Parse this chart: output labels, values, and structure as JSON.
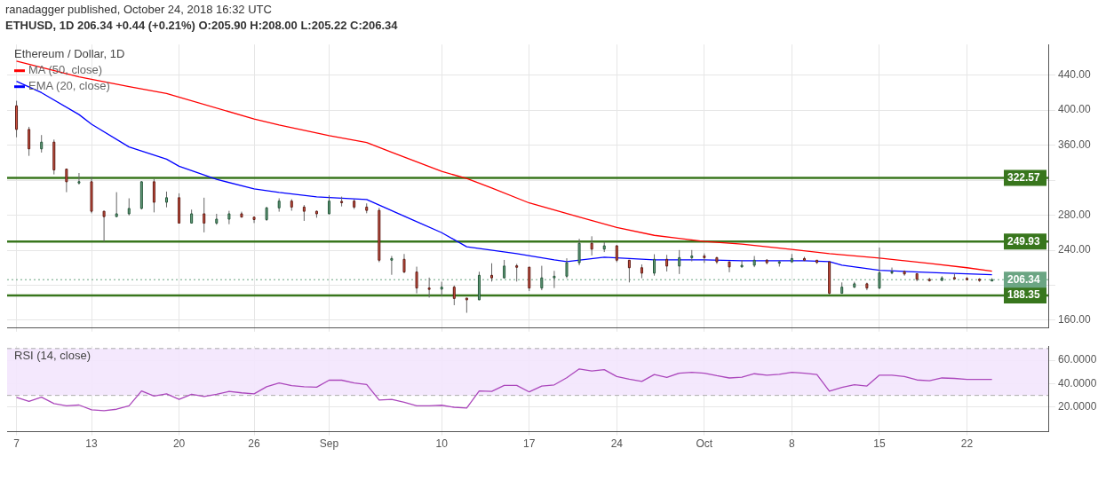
{
  "chart_data": [
    {
      "type": "candlestick",
      "title": "Ethereum / Dollar, 1D",
      "annotations": [
        "ranadagger published, October 24, 2018 16:32 UTC",
        "ETHUSD, 1D 206.34 +0.44 (+0.21%) O:205.90 H:208.00 L:205.22 C:206.34"
      ],
      "x": [
        "2018-08-07",
        "2018-08-08",
        "2018-08-09",
        "2018-08-10",
        "2018-08-11",
        "2018-08-12",
        "2018-08-13",
        "2018-08-14",
        "2018-08-15",
        "2018-08-16",
        "2018-08-17",
        "2018-08-18",
        "2018-08-19",
        "2018-08-20",
        "2018-08-21",
        "2018-08-22",
        "2018-08-23",
        "2018-08-24",
        "2018-08-25",
        "2018-08-26",
        "2018-08-27",
        "2018-08-28",
        "2018-08-29",
        "2018-08-30",
        "2018-08-31",
        "2018-09-01",
        "2018-09-02",
        "2018-09-03",
        "2018-09-04",
        "2018-09-05",
        "2018-09-06",
        "2018-09-07",
        "2018-09-08",
        "2018-09-09",
        "2018-09-10",
        "2018-09-11",
        "2018-09-12",
        "2018-09-13",
        "2018-09-14",
        "2018-09-15",
        "2018-09-16",
        "2018-09-17",
        "2018-09-18",
        "2018-09-19",
        "2018-09-20",
        "2018-09-21",
        "2018-09-22",
        "2018-09-23",
        "2018-09-24",
        "2018-09-25",
        "2018-09-26",
        "2018-09-27",
        "2018-09-28",
        "2018-09-29",
        "2018-09-30",
        "2018-10-01",
        "2018-10-02",
        "2018-10-03",
        "2018-10-04",
        "2018-10-05",
        "2018-10-06",
        "2018-10-07",
        "2018-10-08",
        "2018-10-09",
        "2018-10-10",
        "2018-10-11",
        "2018-10-12",
        "2018-10-13",
        "2018-10-14",
        "2018-10-15",
        "2018-10-16",
        "2018-10-17",
        "2018-10-18",
        "2018-10-19",
        "2018-10-20",
        "2018-10-21",
        "2018-10-22",
        "2018-10-23",
        "2018-10-24"
      ],
      "ohlc": [
        [
          405,
          410.8,
          369,
          378
        ],
        [
          378,
          381,
          347.8,
          355.8
        ],
        [
          355.8,
          371.6,
          351.6,
          363.5
        ],
        [
          363.5,
          366.4,
          326.6,
          331.7
        ],
        [
          332.7,
          332.7,
          306.3,
          318.2
        ],
        [
          317.8,
          328.2,
          315,
          318.3
        ],
        [
          318.2,
          324,
          282.2,
          284.5
        ],
        [
          284.5,
          285,
          249.8,
          278.4
        ],
        [
          278.4,
          306.3,
          278,
          281.6
        ],
        [
          281.6,
          299.3,
          279.7,
          287.7
        ],
        [
          287.7,
          318.8,
          286.6,
          318.2
        ],
        [
          318.2,
          321.4,
          283.2,
          294.8
        ],
        [
          294.8,
          307,
          289,
          300
        ],
        [
          300,
          305,
          270.4,
          271
        ],
        [
          271,
          286.4,
          270.5,
          281.6
        ],
        [
          281.6,
          300,
          260.4,
          271
        ],
        [
          271,
          281.6,
          269.1,
          275.5
        ],
        [
          275.5,
          285,
          269.7,
          281.6
        ],
        [
          281.6,
          284,
          277.5,
          277.8
        ],
        [
          277.8,
          277.8,
          271,
          275
        ],
        [
          275,
          289.5,
          273.5,
          288.4
        ],
        [
          288.4,
          299.3,
          284,
          296.1
        ],
        [
          296.1,
          298.3,
          285.1,
          289.3
        ],
        [
          289.3,
          291.6,
          273.5,
          284.5
        ],
        [
          284.5,
          285.3,
          277.1,
          281.6
        ],
        [
          281.6,
          302.8,
          281,
          296.1
        ],
        [
          295.8,
          301.2,
          290,
          295.2
        ],
        [
          296.1,
          298,
          287,
          289.3
        ],
        [
          289.3,
          293.5,
          282.2,
          285.5
        ],
        [
          285.5,
          288.4,
          226.3,
          228.6
        ],
        [
          228.6,
          233.4,
          211.9,
          230.5
        ],
        [
          229.6,
          235.7,
          213.8,
          215.1
        ],
        [
          215.1,
          221.2,
          190.7,
          196.8
        ],
        [
          196.8,
          208.7,
          185.9,
          195.5
        ],
        [
          195.5,
          203.9,
          187.8,
          197.8
        ],
        [
          197.8,
          199.7,
          177.2,
          184.9
        ],
        [
          185.3,
          185.3,
          168.5,
          183.3
        ],
        [
          183.3,
          215.4,
          183,
          211.3
        ],
        [
          211.3,
          225.1,
          204.2,
          208.4
        ],
        [
          208.4,
          228.9,
          207.8,
          221.9
        ],
        [
          222.2,
          224.4,
          204.2,
          220.5
        ],
        [
          220.6,
          221,
          193.3,
          196.8
        ],
        [
          196.8,
          222.2,
          194.3,
          208.4
        ],
        [
          208.4,
          216.4,
          196.8,
          210.3
        ],
        [
          210.3,
          230.8,
          208,
          225.7
        ],
        [
          225.7,
          253,
          222.8,
          247.9
        ],
        [
          247.9,
          255.9,
          234,
          241.2
        ],
        [
          241.2,
          249.5,
          237.9,
          245
        ],
        [
          245,
          246,
          226.3,
          228.6
        ],
        [
          228.6,
          228.6,
          203.2,
          220
        ],
        [
          220,
          223.8,
          208,
          213.8
        ],
        [
          213.8,
          235.4,
          210.9,
          229.6
        ],
        [
          229.6,
          234.7,
          215.7,
          221.9
        ],
        [
          221.9,
          240.2,
          212.8,
          231.5
        ],
        [
          231.5,
          240.2,
          227.3,
          233.4
        ],
        [
          233.4,
          236.3,
          225.4,
          231.5
        ],
        [
          231.5,
          232.4,
          224.4,
          226.7
        ],
        [
          226.7,
          226.7,
          214.8,
          220.9
        ],
        [
          220.9,
          228.6,
          220.3,
          222.8
        ],
        [
          222.8,
          233.4,
          220.6,
          228.6
        ],
        [
          228.6,
          229.9,
          223.8,
          225.7
        ],
        [
          225.7,
          228,
          221.3,
          226.7
        ],
        [
          226.7,
          235.7,
          225.4,
          230.5
        ],
        [
          230.5,
          232.4,
          227.6,
          228.6
        ],
        [
          228.6,
          228.6,
          224.4,
          226
        ],
        [
          226.7,
          226.7,
          189.7,
          190.7
        ],
        [
          190.7,
          203.2,
          190.7,
          197.8
        ],
        [
          197.8,
          203.9,
          196.8,
          201.6
        ],
        [
          201.6,
          202.9,
          194.3,
          196.8
        ],
        [
          196.8,
          243.1,
          195.5,
          214.2
        ],
        [
          214,
          220.2,
          212.5,
          215.5
        ],
        [
          215.5,
          217,
          210.9,
          212.8
        ],
        [
          213.2,
          213.2,
          204.5,
          206.7
        ],
        [
          206.7,
          208.4,
          204.2,
          205.5
        ],
        [
          205.5,
          210.3,
          204.8,
          208.4
        ],
        [
          208.7,
          213.2,
          207,
          207.2
        ],
        [
          207.8,
          209.3,
          205.5,
          206.7
        ],
        [
          206.9,
          208,
          203.9,
          206.3
        ],
        [
          205.9,
          208,
          205.22,
          206.34
        ]
      ],
      "series": [
        {
          "type": "line",
          "name": "MA (50, close)",
          "color": "#ff0000",
          "x": [
            "2018-08-07",
            "2018-08-12",
            "2018-08-16",
            "2018-08-19",
            "2018-08-26",
            "2018-08-28",
            "2018-09-01",
            "2018-09-04",
            "2018-09-06",
            "2018-09-10",
            "2018-09-12",
            "2018-09-14",
            "2018-09-17",
            "2018-09-19",
            "2018-09-21",
            "2018-09-24",
            "2018-09-27",
            "2018-10-01",
            "2018-10-04",
            "2018-10-08",
            "2018-10-11",
            "2018-10-15",
            "2018-10-19",
            "2018-10-22",
            "2018-10-24"
          ],
          "values": [
            456,
            438,
            427,
            419,
            390,
            383,
            371,
            363,
            352,
            330,
            322,
            311,
            294,
            286,
            278,
            266,
            257,
            250,
            247,
            241,
            236,
            231,
            225,
            220,
            216
          ]
        },
        {
          "type": "line",
          "name": "EMA (20, close)",
          "color": "#0000ff",
          "x": [
            "2018-08-07",
            "2018-08-09",
            "2018-08-12",
            "2018-08-13",
            "2018-08-16",
            "2018-08-19",
            "2018-08-20",
            "2018-08-23",
            "2018-08-26",
            "2018-08-28",
            "2018-08-31",
            "2018-09-04",
            "2018-09-07",
            "2018-09-10",
            "2018-09-12",
            "2018-09-16",
            "2018-09-19",
            "2018-09-20",
            "2018-09-23",
            "2018-09-27",
            "2018-10-01",
            "2018-10-04",
            "2018-10-09",
            "2018-10-11",
            "2018-10-12",
            "2018-10-15",
            "2018-10-20",
            "2018-10-24"
          ],
          "values": [
            433,
            420,
            395,
            384,
            358,
            344,
            336,
            321,
            310,
            306,
            301,
            298,
            279,
            260,
            244,
            236,
            229,
            227,
            232,
            229,
            229,
            228,
            228,
            227,
            223,
            217,
            214,
            212
          ]
        }
      ],
      "xlim": [
        "2018-08-06T06:00",
        "2018-10-28T12:00"
      ],
      "xticks": [
        {
          "value": "2018-08-07",
          "label": null
        },
        {
          "value": "2018-08-13",
          "label": null
        },
        {
          "value": "2018-08-20",
          "label": null
        },
        {
          "value": "2018-08-26",
          "label": null
        },
        {
          "value": "2018-09-01",
          "label": null
        },
        {
          "value": "2018-09-10",
          "label": null
        },
        {
          "value": "2018-09-17",
          "label": null
        },
        {
          "value": "2018-09-24",
          "label": null
        },
        {
          "value": "2018-10-01",
          "label": null
        },
        {
          "value": "2018-10-08",
          "label": null
        },
        {
          "value": "2018-10-15",
          "label": null
        },
        {
          "value": "2018-10-22",
          "label": null
        }
      ],
      "ylim": [
        151,
        475
      ],
      "yticks": [
        {
          "value": 160,
          "label": "160.00"
        },
        {
          "value": 200,
          "label": null
        },
        {
          "value": 240,
          "label": "240.00"
        },
        {
          "value": 280,
          "label": "280.00"
        },
        {
          "value": 320,
          "label": null
        },
        {
          "value": 360,
          "label": "360.00"
        },
        {
          "value": 400,
          "label": "400.00"
        },
        {
          "value": 440,
          "label": "440.00"
        }
      ],
      "ref_lines": [
        {
          "axis": "y",
          "value": 322.57,
          "label": "322.57",
          "color": "#38761d"
        },
        {
          "axis": "y",
          "value": 249.93,
          "label": "249.93",
          "color": "#38761d"
        },
        {
          "axis": "y",
          "value": 188.35,
          "label": "188.35",
          "color": "#38761d"
        },
        {
          "axis": "y",
          "value": 206.34,
          "label": "206.34",
          "color": "#6ba583",
          "line_style": "dotted"
        }
      ],
      "grid": true,
      "legend": "top left",
      "tick_labels": "y"
    },
    {
      "type": "line",
      "title": "RSI (14, close)",
      "color": "#ab47bc",
      "marker": "none",
      "line_style": "solid",
      "x": [
        "2018-08-07",
        "2018-08-08",
        "2018-08-09",
        "2018-08-10",
        "2018-08-11",
        "2018-08-12",
        "2018-08-13",
        "2018-08-14",
        "2018-08-15",
        "2018-08-16",
        "2018-08-17",
        "2018-08-18",
        "2018-08-19",
        "2018-08-20",
        "2018-08-21",
        "2018-08-22",
        "2018-08-23",
        "2018-08-24",
        "2018-08-25",
        "2018-08-26",
        "2018-08-27",
        "2018-08-28",
        "2018-08-29",
        "2018-08-30",
        "2018-08-31",
        "2018-09-01",
        "2018-09-02",
        "2018-09-03",
        "2018-09-04",
        "2018-09-05",
        "2018-09-06",
        "2018-09-07",
        "2018-09-08",
        "2018-09-09",
        "2018-09-10",
        "2018-09-11",
        "2018-09-12",
        "2018-09-13",
        "2018-09-14",
        "2018-09-15",
        "2018-09-16",
        "2018-09-17",
        "2018-09-18",
        "2018-09-19",
        "2018-09-20",
        "2018-09-21",
        "2018-09-22",
        "2018-09-23",
        "2018-09-24",
        "2018-09-25",
        "2018-09-26",
        "2018-09-27",
        "2018-09-28",
        "2018-09-29",
        "2018-09-30",
        "2018-10-01",
        "2018-10-02",
        "2018-10-03",
        "2018-10-04",
        "2018-10-05",
        "2018-10-06",
        "2018-10-07",
        "2018-10-08",
        "2018-10-09",
        "2018-10-10",
        "2018-10-11",
        "2018-10-12",
        "2018-10-13",
        "2018-10-14",
        "2018-10-15",
        "2018-10-16",
        "2018-10-17",
        "2018-10-18",
        "2018-10-19",
        "2018-10-20",
        "2018-10-21",
        "2018-10-22",
        "2018-10-23",
        "2018-10-24"
      ],
      "values": [
        28.3,
        25,
        28.5,
        23,
        21.1,
        21.8,
        17.7,
        17,
        18.2,
        21.1,
        33.8,
        29.5,
        31.4,
        26.6,
        31,
        29,
        31,
        33.4,
        32.2,
        31.4,
        37.4,
        40.6,
        38.4,
        37.4,
        37,
        43,
        43,
        40.6,
        39.3,
        26.1,
        26.6,
        24.2,
        21.1,
        21.1,
        21.6,
        19.9,
        19.2,
        33.8,
        33.4,
        38.6,
        38.6,
        33,
        38,
        39,
        45.1,
        52.6,
        50.9,
        52,
        46.1,
        43.9,
        42,
        47.8,
        45.4,
        49,
        49.7,
        49,
        46.8,
        44.9,
        45.6,
        48.5,
        47.3,
        48,
        49.7,
        49,
        47.8,
        33.6,
        36.8,
        39.1,
        38,
        47.3,
        47.3,
        46.1,
        43.2,
        42.5,
        44.9,
        44.5,
        43.7,
        43.7,
        43.7
      ],
      "xlim": [
        "2018-08-06T06:00",
        "2018-10-28T12:00"
      ],
      "xticks": [
        {
          "value": "2018-08-07",
          "label": "7"
        },
        {
          "value": "2018-08-13",
          "label": "13"
        },
        {
          "value": "2018-08-20",
          "label": "20"
        },
        {
          "value": "2018-08-26",
          "label": "26"
        },
        {
          "value": "2018-09-01",
          "label": "Sep"
        },
        {
          "value": "2018-09-10",
          "label": "10"
        },
        {
          "value": "2018-09-17",
          "label": "17"
        },
        {
          "value": "2018-09-24",
          "label": "24"
        },
        {
          "value": "2018-10-01",
          "label": "Oct"
        },
        {
          "value": "2018-10-08",
          "label": "8"
        },
        {
          "value": "2018-10-15",
          "label": "15"
        },
        {
          "value": "2018-10-22",
          "label": "22"
        }
      ],
      "ylim": [
        -1,
        72
      ],
      "yticks": [
        {
          "value": 20,
          "label": "20.0000"
        },
        {
          "value": 40,
          "label": "40.0000"
        },
        {
          "value": 60,
          "label": "60.0000"
        }
      ],
      "bands": [
        {
          "axis": "y",
          "from": 30,
          "to": 70,
          "color": "#f3e5fd"
        }
      ],
      "ref_lines": [
        {
          "axis": "y",
          "value": 70,
          "color": "#aaaaaa",
          "line_style": "dashed"
        },
        {
          "axis": "y",
          "value": 30,
          "color": "#aaaaaa",
          "line_style": "dashed"
        }
      ],
      "grid": true
    }
  ]
}
